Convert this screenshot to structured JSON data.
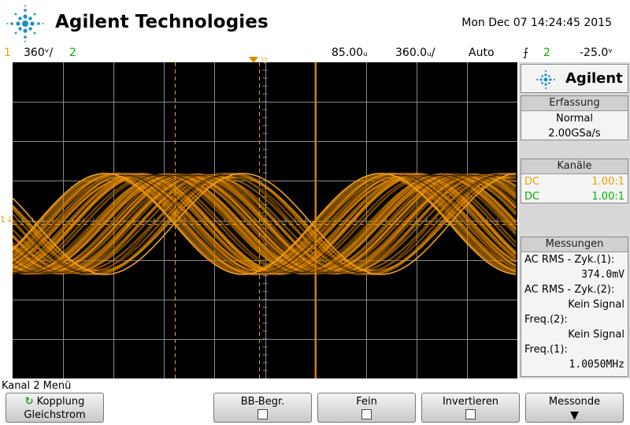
{
  "header": {
    "brand": "Agilent Technologies",
    "datetime": "Mon Dec 07 14:24:45 2015"
  },
  "status_bar": {
    "ch1_num": "1",
    "ch1_scale": "360ᵛ/",
    "ch2_num": "2",
    "time_delay": "85.00ᵤ",
    "time_scale": "360.0ᵤ/",
    "trigger_mode": "Auto",
    "trigger_source": "2",
    "trigger_level": "-25.0ᵛ"
  },
  "panel": {
    "brand": "Agilent",
    "acquisition": {
      "title": "Erfassung",
      "mode": "Normal",
      "rate": "2.00GSa/s"
    },
    "channels": {
      "title": "Kanäle",
      "ch1_coupling": "DC",
      "ch1_probe": "1.00:1",
      "ch2_coupling": "DC",
      "ch2_probe": "1.00:1"
    },
    "measurements": {
      "title": "Messungen",
      "m1_label": "AC RMS - Zyk.(1):",
      "m1_value": "374.0mV",
      "m2_label": "AC RMS - Zyk.(2):",
      "m2_value": "Kein Signal",
      "m3_label": "Freq.(2):",
      "m3_value": "Kein Signal",
      "m4_label": "Freq.(1):",
      "m4_value": "1.0050MHz"
    }
  },
  "menu": {
    "title": "Kanal 2 Menü",
    "softkeys": [
      {
        "line1": "Kopplung",
        "line2": "Gleichstrom"
      },
      {
        "line1": "BB-Begr."
      },
      {
        "line1": "Fein"
      },
      {
        "line1": "Invertieren"
      },
      {
        "line1": "Messonde"
      }
    ]
  },
  "colors": {
    "ch1": "#e8a000",
    "ch2": "#00b000",
    "trace": "#e08a00",
    "grid": "#8a8a8a"
  }
}
